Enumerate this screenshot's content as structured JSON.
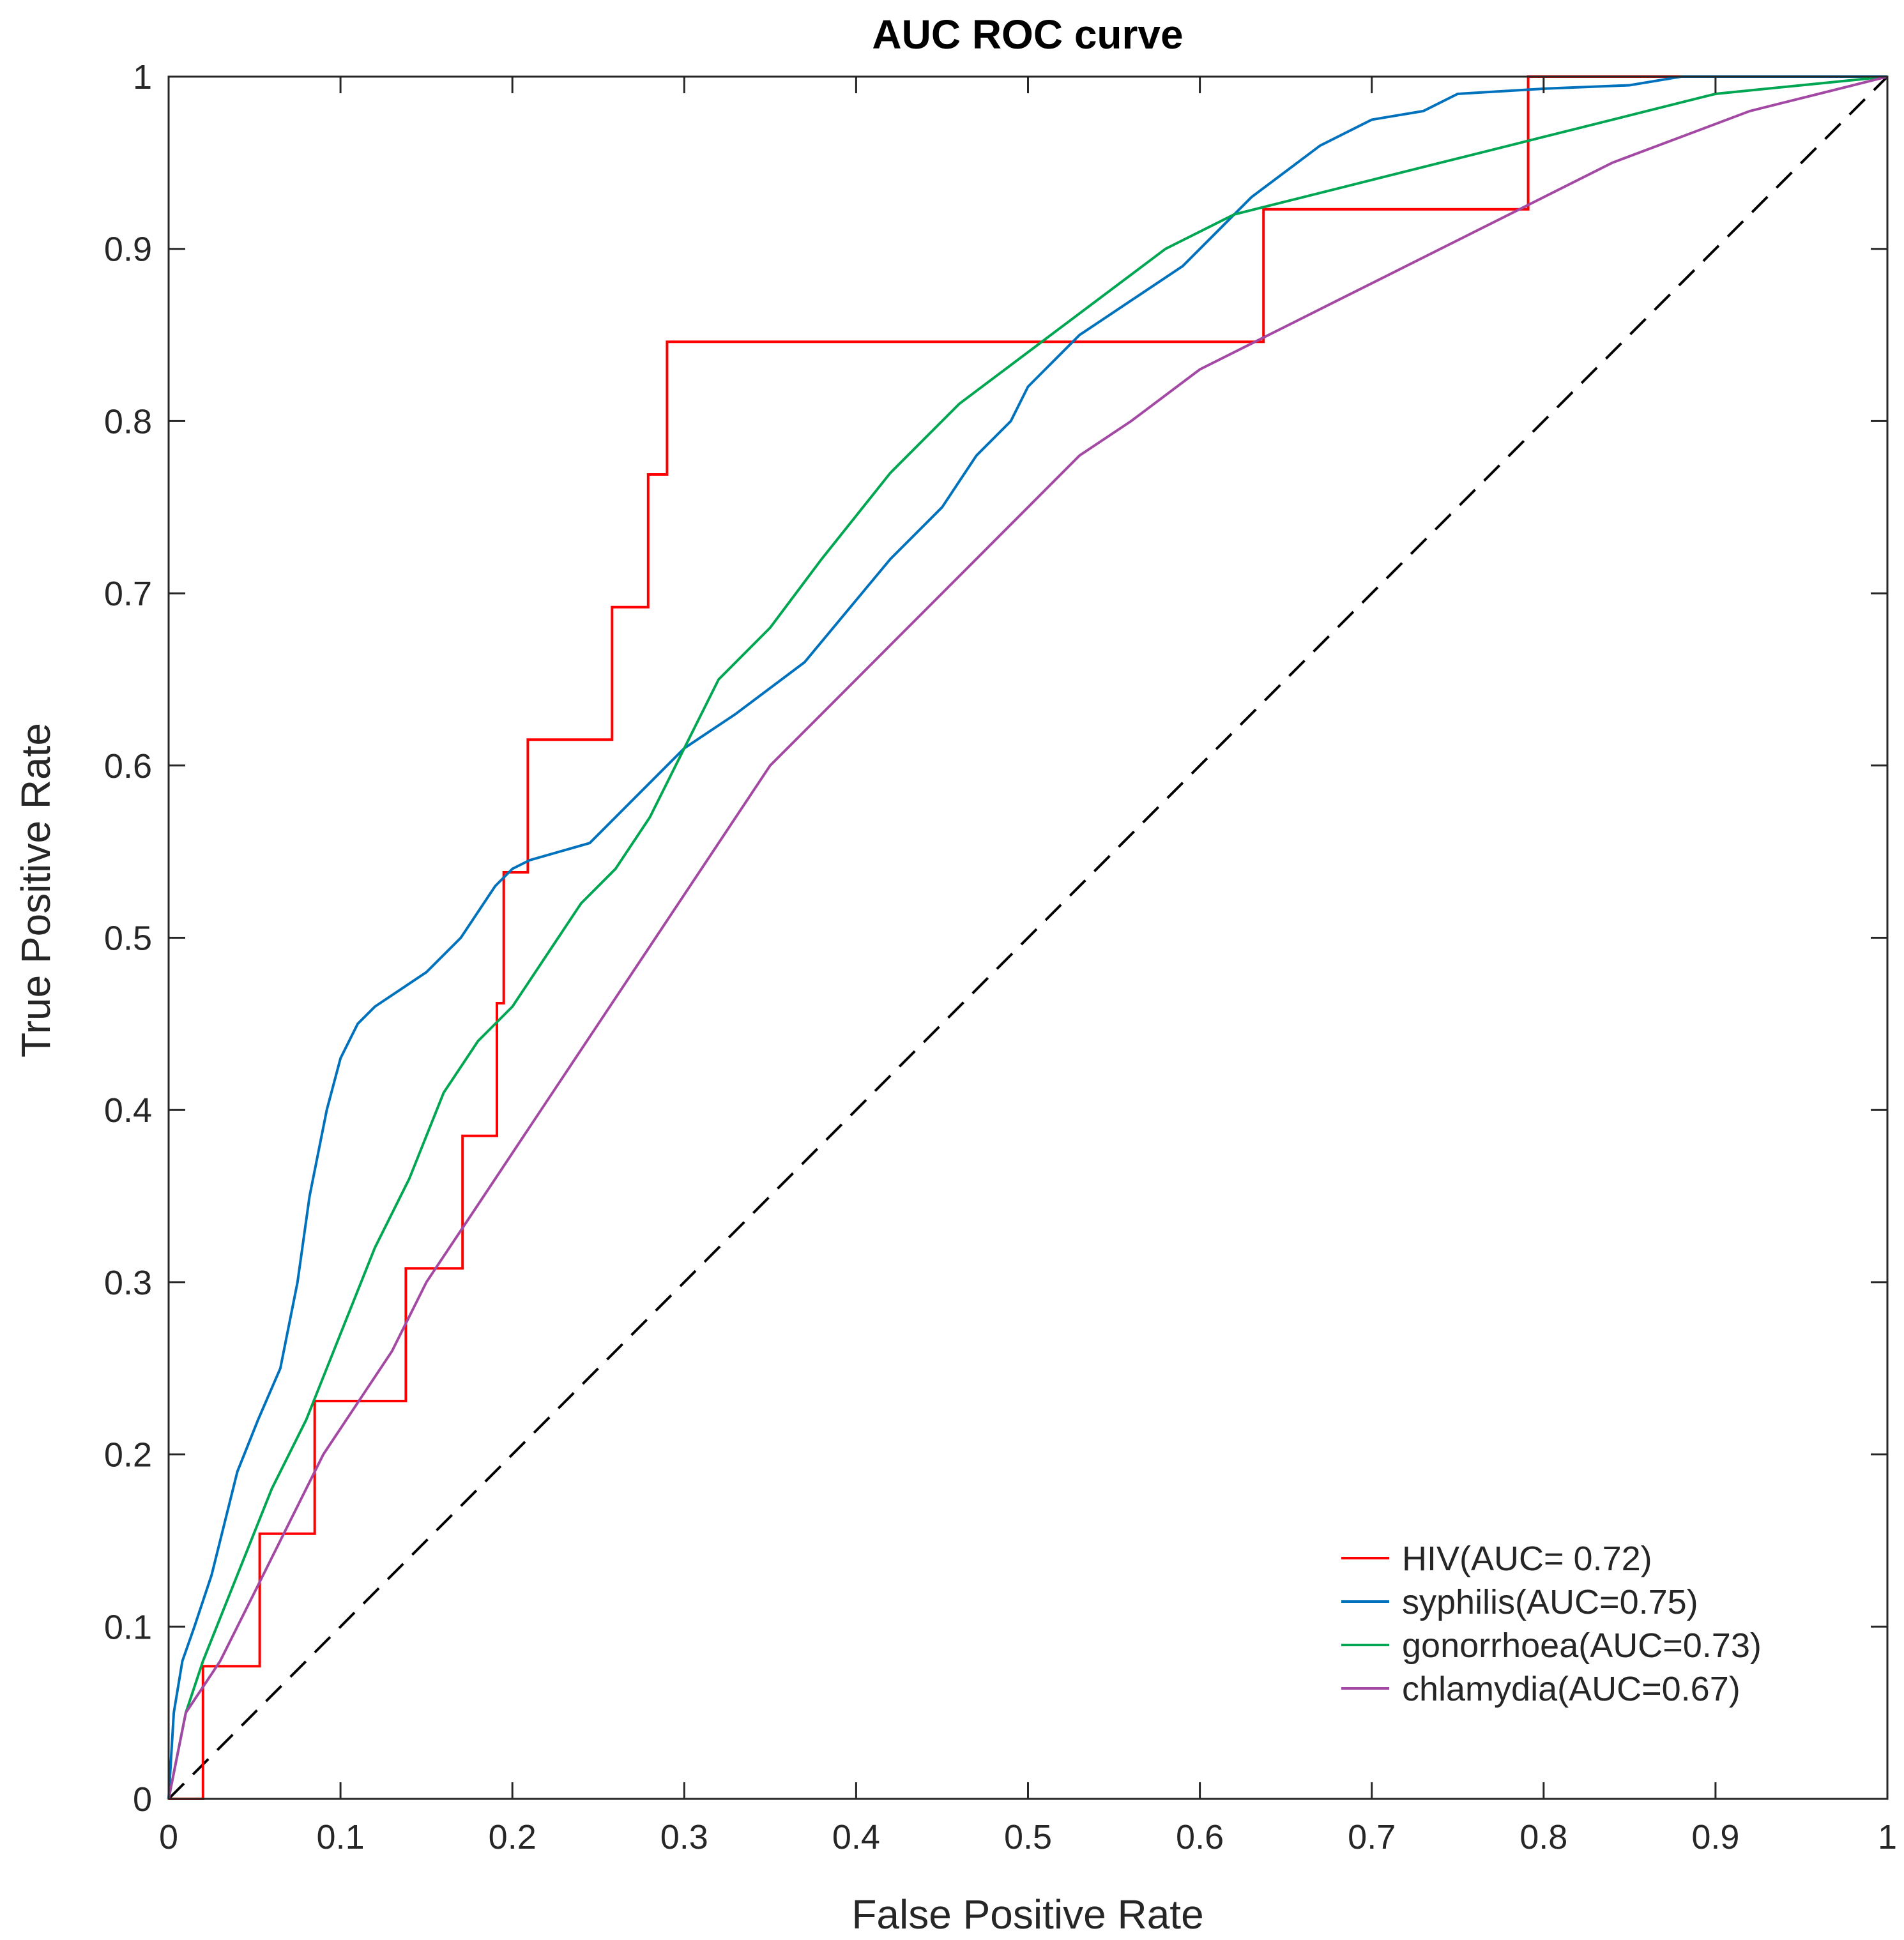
{
  "chart_data": {
    "type": "line",
    "title": "AUC ROC curve",
    "xlabel": "False Positive Rate",
    "ylabel": "True Positive Rate",
    "xlim": [
      0,
      1
    ],
    "ylim": [
      0,
      1
    ],
    "xticks": [
      0,
      0.1,
      0.2,
      0.3,
      0.4,
      0.5,
      0.6,
      0.7,
      0.8,
      0.9,
      1
    ],
    "yticks": [
      0,
      0.1,
      0.2,
      0.3,
      0.4,
      0.5,
      0.6,
      0.7,
      0.8,
      0.9,
      1
    ],
    "xtick_labels": [
      "0",
      "0.1",
      "0.2",
      "0.3",
      "0.4",
      "0.5",
      "0.6",
      "0.7",
      "0.8",
      "0.9",
      "1"
    ],
    "ytick_labels": [
      "0",
      "0.1",
      "0.2",
      "0.3",
      "0.4",
      "0.5",
      "0.6",
      "0.7",
      "0.8",
      "0.9",
      "1"
    ],
    "grid": false,
    "legend_position": "bottom-right",
    "reference_line": {
      "name": "chance",
      "x": [
        0,
        1
      ],
      "y": [
        0,
        1
      ],
      "color": "#000000",
      "style": "dashed"
    },
    "series": [
      {
        "name": "HIV(AUC= 0.72)",
        "color": "#ff0000",
        "step": true,
        "x": [
          0,
          0.02,
          0.02,
          0.053,
          0.053,
          0.085,
          0.085,
          0.138,
          0.138,
          0.171,
          0.171,
          0.191,
          0.191,
          0.195,
          0.195,
          0.209,
          0.209,
          0.258,
          0.258,
          0.279,
          0.279,
          0.29,
          0.29,
          0.637,
          0.637,
          0.791,
          0.791,
          1
        ],
        "y": [
          0,
          0,
          0.077,
          0.077,
          0.154,
          0.154,
          0.231,
          0.231,
          0.308,
          0.308,
          0.385,
          0.385,
          0.462,
          0.462,
          0.538,
          0.538,
          0.615,
          0.615,
          0.692,
          0.692,
          0.769,
          0.769,
          0.846,
          0.846,
          0.923,
          0.923,
          1,
          1
        ]
      },
      {
        "name": "syphilis(AUC=0.75)",
        "color": "#0072bd",
        "x": [
          0,
          0.003,
          0.008,
          0.015,
          0.025,
          0.04,
          0.052,
          0.065,
          0.075,
          0.082,
          0.092,
          0.1,
          0.11,
          0.12,
          0.15,
          0.17,
          0.19,
          0.2,
          0.21,
          0.245,
          0.27,
          0.3,
          0.33,
          0.37,
          0.42,
          0.45,
          0.47,
          0.49,
          0.5,
          0.51,
          0.53,
          0.56,
          0.59,
          0.63,
          0.67,
          0.69,
          0.7,
          0.73,
          0.75,
          0.8,
          0.85,
          0.88,
          1
        ],
        "y": [
          0,
          0.05,
          0.08,
          0.1,
          0.13,
          0.19,
          0.22,
          0.25,
          0.3,
          0.35,
          0.4,
          0.43,
          0.45,
          0.46,
          0.48,
          0.5,
          0.53,
          0.54,
          0.545,
          0.555,
          0.58,
          0.61,
          0.63,
          0.66,
          0.72,
          0.75,
          0.78,
          0.8,
          0.82,
          0.83,
          0.85,
          0.87,
          0.89,
          0.93,
          0.96,
          0.97,
          0.975,
          0.98,
          0.99,
          0.993,
          0.995,
          1,
          1
        ]
      },
      {
        "name": "gonorrhoea(AUC=0.73)",
        "color": "#00a651",
        "x": [
          0,
          0.01,
          0.02,
          0.04,
          0.06,
          0.08,
          0.1,
          0.12,
          0.14,
          0.16,
          0.18,
          0.2,
          0.22,
          0.24,
          0.26,
          0.28,
          0.3,
          0.32,
          0.35,
          0.38,
          0.42,
          0.46,
          0.5,
          0.54,
          0.58,
          0.62,
          0.66,
          0.7,
          0.74,
          0.78,
          0.82,
          0.86,
          0.9,
          0.95,
          1
        ],
        "y": [
          0,
          0.05,
          0.08,
          0.13,
          0.18,
          0.22,
          0.27,
          0.32,
          0.36,
          0.41,
          0.44,
          0.46,
          0.49,
          0.52,
          0.54,
          0.57,
          0.61,
          0.65,
          0.68,
          0.72,
          0.77,
          0.81,
          0.84,
          0.87,
          0.9,
          0.92,
          0.93,
          0.94,
          0.95,
          0.96,
          0.97,
          0.98,
          0.99,
          0.995,
          1
        ]
      },
      {
        "name": "chlamydia(AUC=0.67)",
        "color": "#a349a4",
        "x": [
          0,
          0.01,
          0.03,
          0.05,
          0.07,
          0.09,
          0.11,
          0.13,
          0.15,
          0.17,
          0.19,
          0.21,
          0.23,
          0.25,
          0.27,
          0.29,
          0.31,
          0.33,
          0.35,
          0.38,
          0.41,
          0.44,
          0.47,
          0.5,
          0.53,
          0.56,
          0.6,
          0.64,
          0.68,
          0.72,
          0.76,
          0.8,
          0.84,
          0.88,
          0.92,
          0.96,
          1
        ],
        "y": [
          0,
          0.05,
          0.08,
          0.12,
          0.16,
          0.2,
          0.23,
          0.26,
          0.3,
          0.33,
          0.36,
          0.39,
          0.42,
          0.45,
          0.48,
          0.51,
          0.54,
          0.57,
          0.6,
          0.63,
          0.66,
          0.69,
          0.72,
          0.75,
          0.78,
          0.8,
          0.83,
          0.85,
          0.87,
          0.89,
          0.91,
          0.93,
          0.95,
          0.965,
          0.98,
          0.99,
          1
        ]
      }
    ]
  }
}
